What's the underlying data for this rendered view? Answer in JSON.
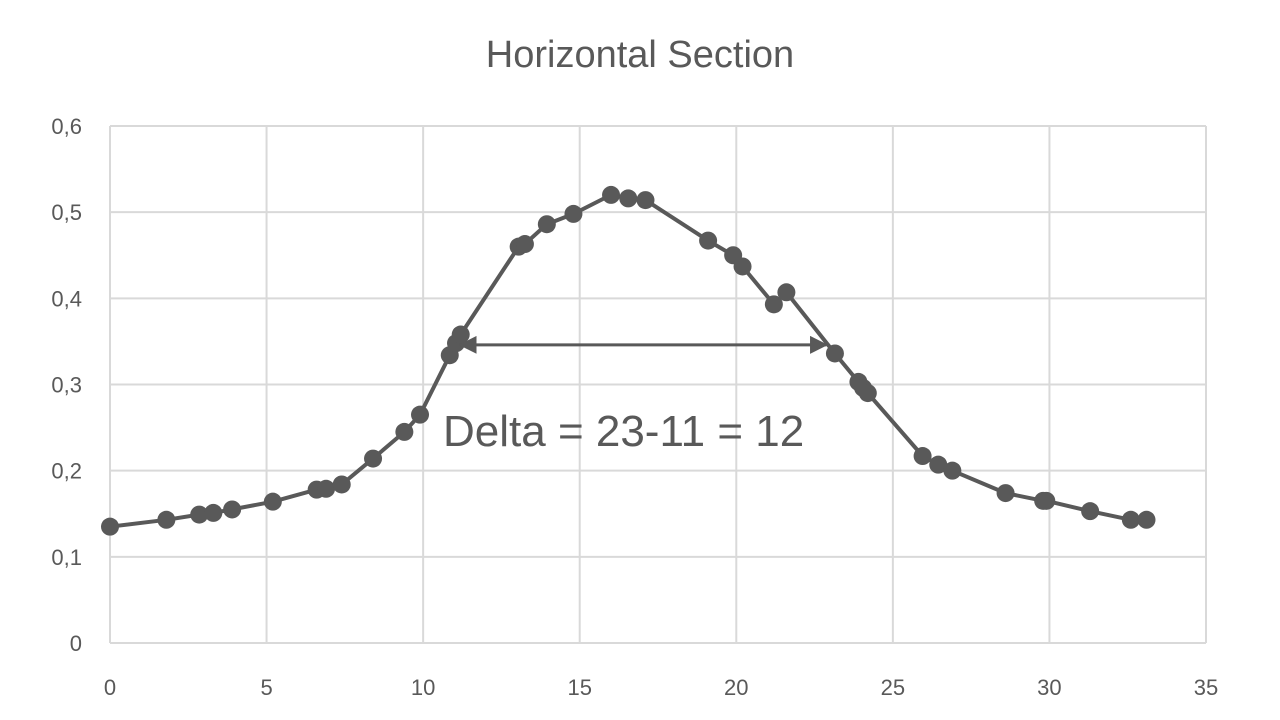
{
  "chart_data": {
    "type": "scatter",
    "title": "Horizontal Section",
    "xlabel": "",
    "ylabel": "",
    "xlim": [
      0,
      35
    ],
    "ylim": [
      0,
      0.6
    ],
    "x_ticks": [
      "0",
      "5",
      "10",
      "15",
      "20",
      "25",
      "30",
      "35"
    ],
    "y_ticks": [
      "0",
      "0,1",
      "0,2",
      "0,3",
      "0,4",
      "0,5",
      "0,6"
    ],
    "grid": true,
    "legend": "none",
    "series": [
      {
        "style": "line-with-markers",
        "color": "#595959",
        "x": [
          0,
          1.8,
          2.85,
          3.3,
          3.9,
          5.2,
          6.6,
          6.9,
          7.4,
          8.4,
          9.4,
          9.9,
          10.85,
          11.05,
          11.2,
          13.05,
          13.25,
          13.95,
          14.8,
          16.0,
          16.55,
          17.1,
          19.1,
          19.9,
          20.2,
          21.2,
          21.6,
          23.15,
          23.9,
          24.05,
          24.2,
          25.95,
          26.45,
          26.9,
          28.6,
          29.8,
          29.9,
          31.3,
          32.6,
          33.1
        ],
        "y": [
          0.135,
          0.143,
          0.149,
          0.151,
          0.155,
          0.164,
          0.178,
          0.179,
          0.184,
          0.214,
          0.245,
          0.265,
          0.334,
          0.348,
          0.358,
          0.46,
          0.463,
          0.486,
          0.498,
          0.52,
          0.516,
          0.514,
          0.467,
          0.45,
          0.437,
          0.393,
          0.407,
          0.336,
          0.303,
          0.296,
          0.29,
          0.217,
          0.207,
          0.2,
          0.174,
          0.165,
          0.165,
          0.153,
          0.143,
          0.143
        ]
      }
    ],
    "annotations": {
      "arrow": {
        "x1": 11,
        "x2": 23,
        "y": 0.346
      },
      "label": {
        "text": "Delta = 23-11 = 12"
      }
    }
  }
}
